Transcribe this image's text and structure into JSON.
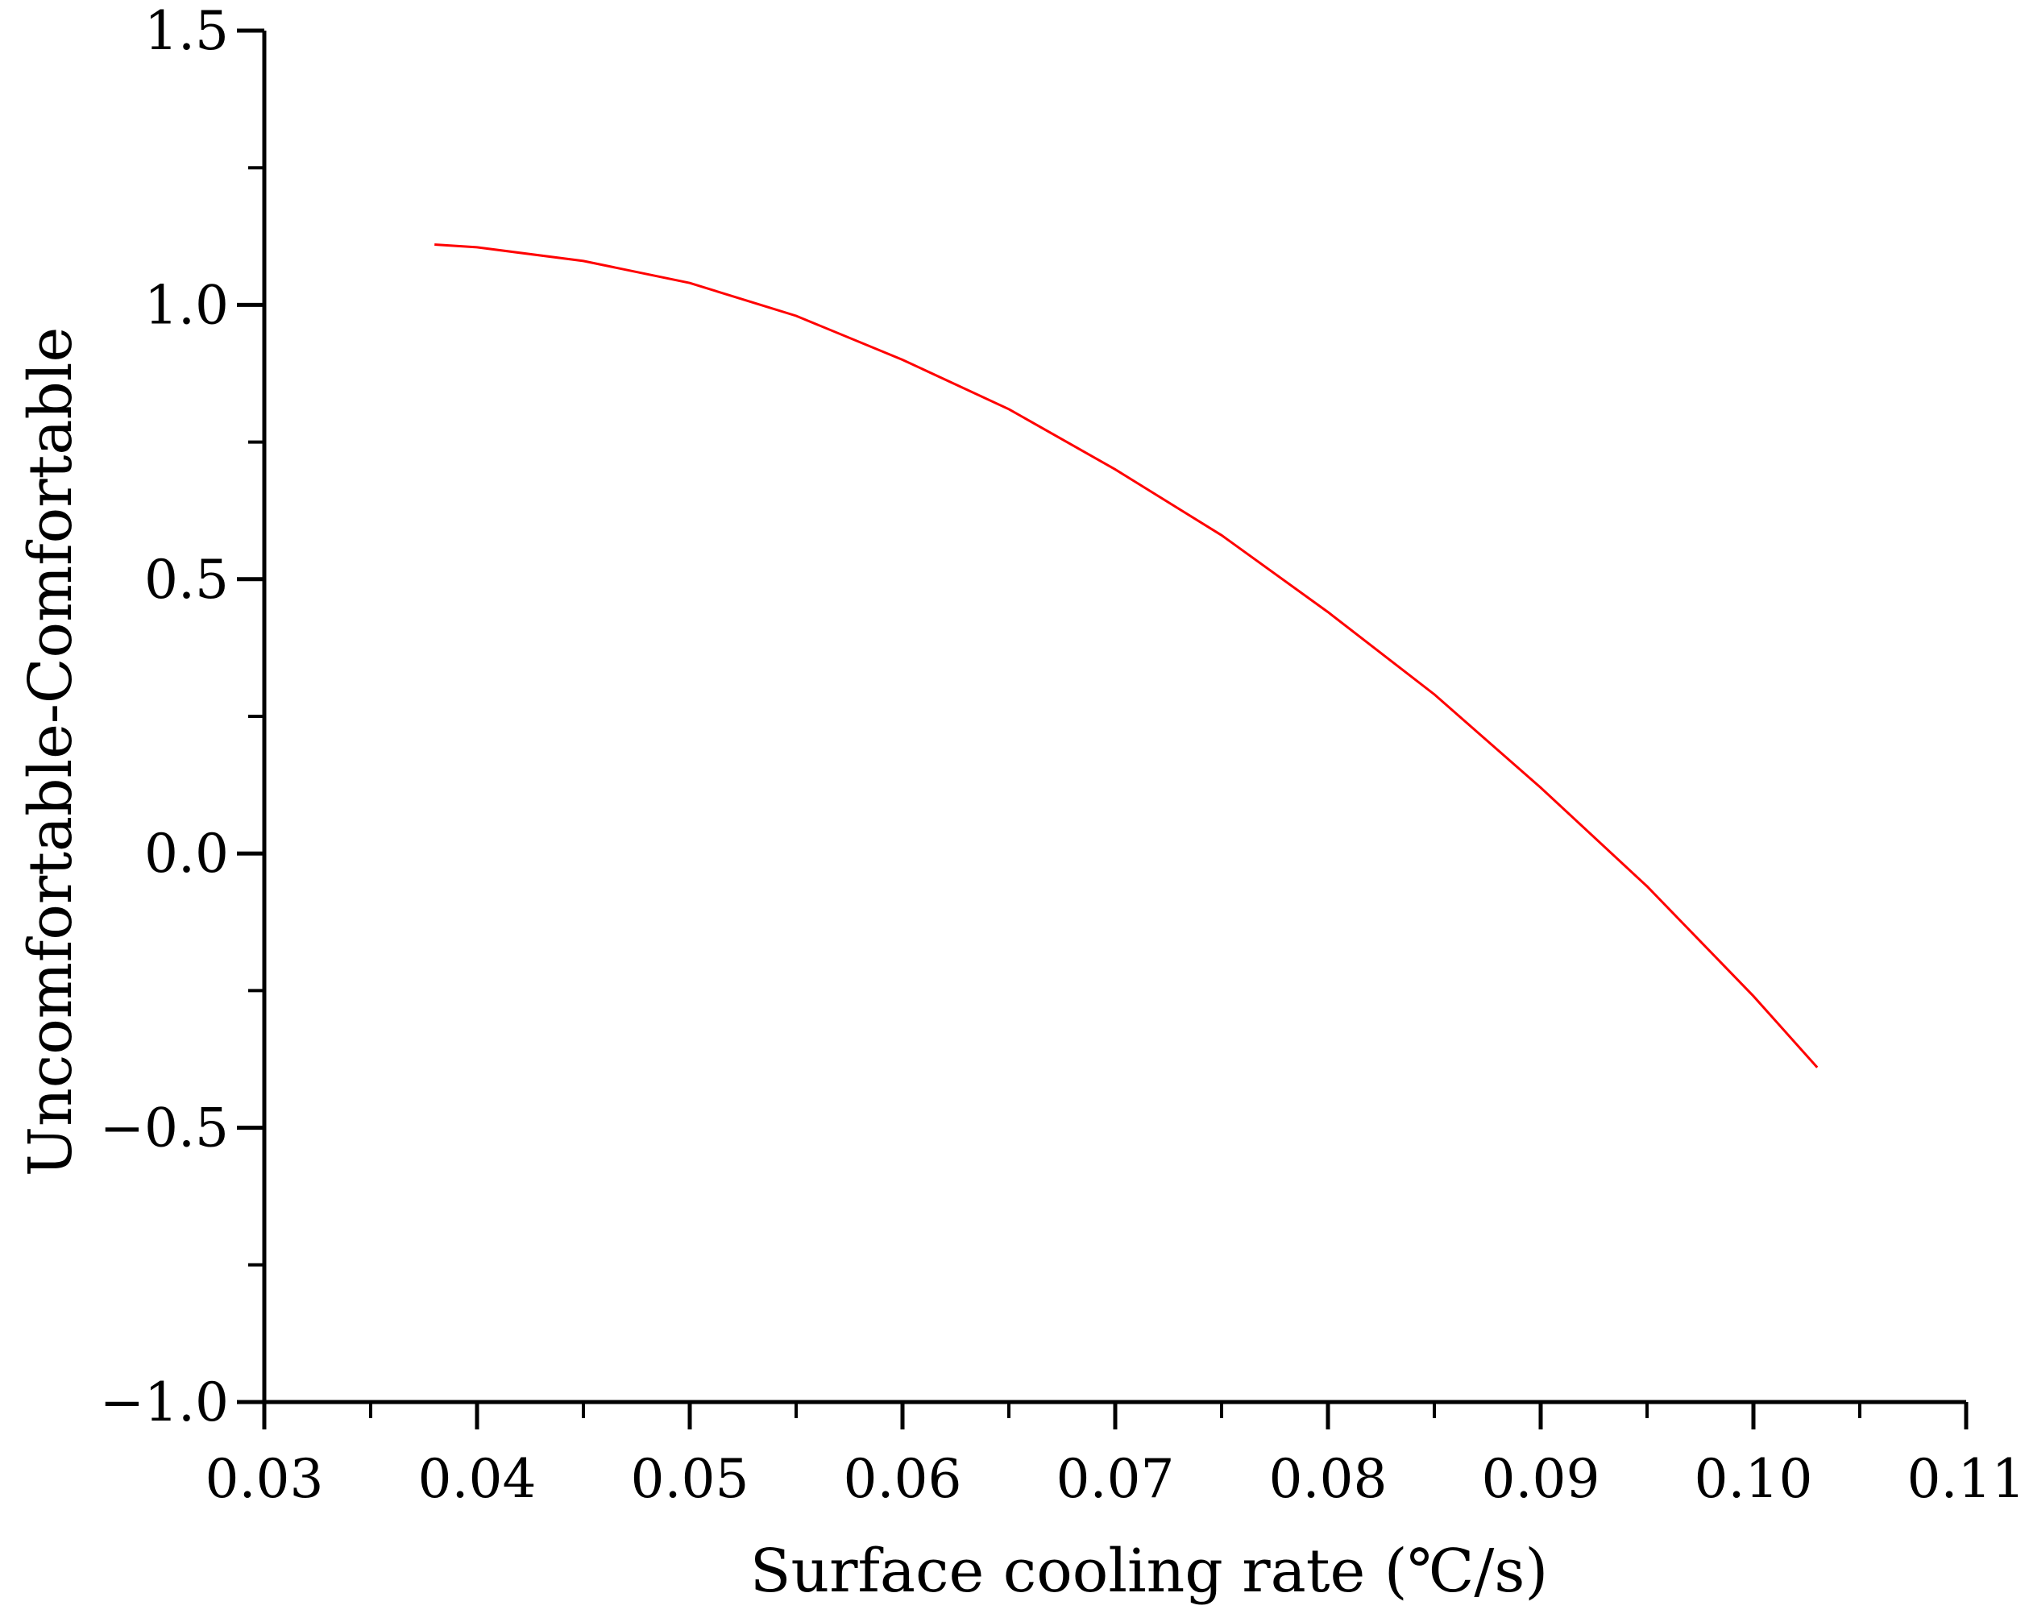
{
  "chart_data": {
    "type": "line",
    "title": "",
    "xlabel": "Surface cooling rate (℃/s)",
    "ylabel": "Uncomfortable-Comfortable",
    "xlim": [
      0.03,
      0.11
    ],
    "ylim": [
      -1.0,
      1.5
    ],
    "x_ticks": [
      0.03,
      0.04,
      0.05,
      0.06,
      0.07,
      0.08,
      0.09,
      0.1,
      0.11
    ],
    "x_tick_labels": [
      "0.03",
      "0.04",
      "0.05",
      "0.06",
      "0.07",
      "0.08",
      "0.09",
      "0.10",
      "0.11"
    ],
    "y_ticks": [
      -1.0,
      -0.5,
      0.0,
      0.5,
      1.0,
      1.5
    ],
    "y_tick_labels": [
      "−1.0",
      "−0.5",
      "0.0",
      "0.5",
      "1.0",
      "1.5"
    ],
    "grid": false,
    "series": [
      {
        "color": "#ff0000",
        "x": [
          0.038,
          0.04,
          0.045,
          0.05,
          0.055,
          0.06,
          0.065,
          0.07,
          0.075,
          0.08,
          0.085,
          0.09,
          0.095,
          0.1,
          0.103
        ],
        "y": [
          1.11,
          1.105,
          1.08,
          1.04,
          0.98,
          0.9,
          0.81,
          0.7,
          0.58,
          0.44,
          0.29,
          0.12,
          -0.06,
          -0.26,
          -0.39
        ]
      }
    ]
  }
}
